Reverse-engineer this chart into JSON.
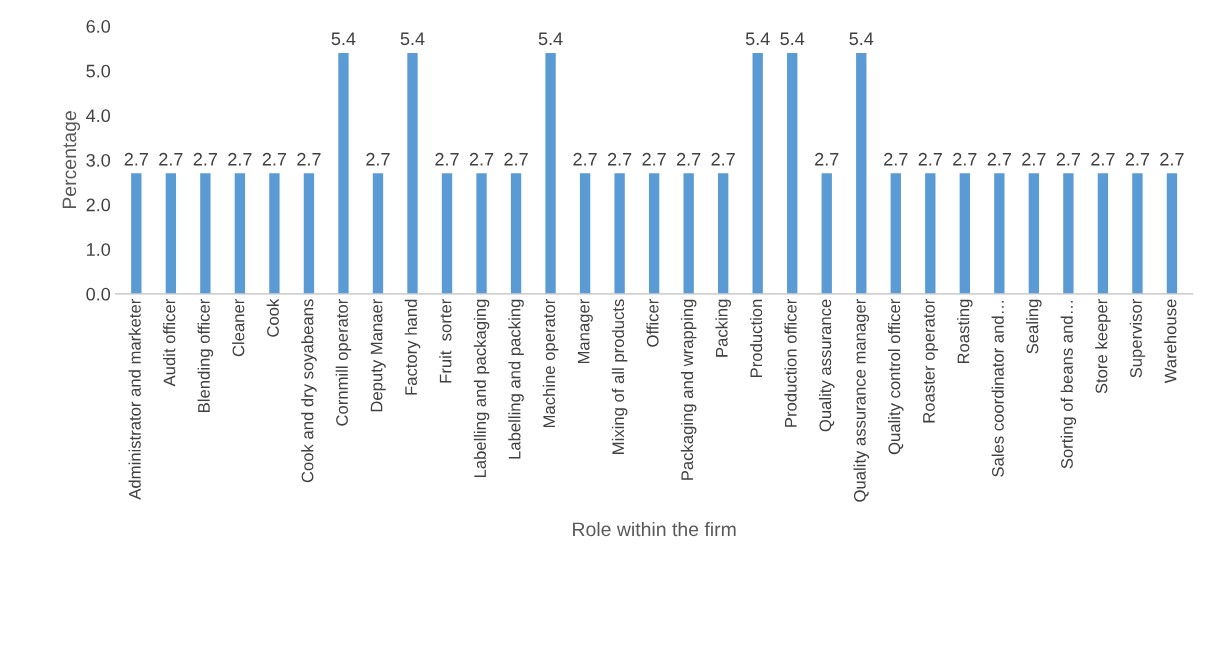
{
  "chart_data": {
    "type": "bar",
    "xlabel": "Role within the firm",
    "ylabel": "Percentage",
    "categories": [
      "Administrator and marketer",
      "Audit officer",
      "Blending officer",
      "Cleaner",
      "Cook",
      "Cook and dry soyabeans",
      "Cornmill operator",
      "Deputy Manaer",
      "Factory hand",
      "Fruit  sorter",
      "Labelling and packaging",
      "Labelling and packing",
      "Machine operator",
      "Manager",
      "Mixing of all products",
      "Officer",
      "Packaging and wrapping",
      "Packing",
      "Production",
      "Production officer",
      "Quality assurance",
      "Quality assurance manager",
      "Quality control officer",
      "Roaster operator",
      "Roasting",
      "Sales coordinator and…",
      "Sealing",
      "Sorting of beans and…",
      "Store keeper",
      "Supervisor",
      "Warehouse"
    ],
    "values": [
      2.7,
      2.7,
      2.7,
      2.7,
      2.7,
      2.7,
      5.4,
      2.7,
      5.4,
      2.7,
      2.7,
      2.7,
      5.4,
      2.7,
      2.7,
      2.7,
      2.7,
      2.7,
      5.4,
      5.4,
      2.7,
      5.4,
      2.7,
      2.7,
      2.7,
      2.7,
      2.7,
      2.7,
      2.7,
      2.7,
      2.7
    ],
    "color": "#5b9bd5",
    "ylim": [
      0,
      6
    ],
    "yticks": [
      {
        "value": 0,
        "label": "0.0"
      },
      {
        "value": 1,
        "label": "1.0"
      },
      {
        "value": 2,
        "label": "2.0"
      },
      {
        "value": 3,
        "label": "3.0"
      },
      {
        "value": 4,
        "label": "4.0"
      },
      {
        "value": 5,
        "label": "5.0"
      },
      {
        "value": 6,
        "label": "6.0"
      }
    ],
    "data_labels": true,
    "grid": false,
    "legend": false
  }
}
